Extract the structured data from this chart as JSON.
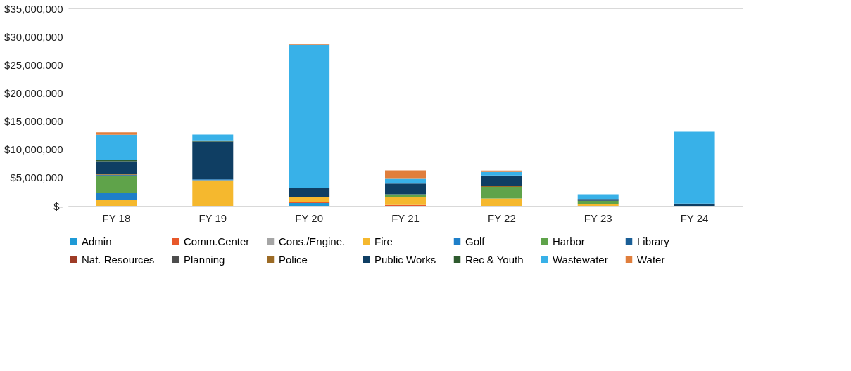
{
  "chart_data": {
    "type": "bar",
    "stacked": true,
    "categories": [
      "FY 18",
      "FY 19",
      "FY 20",
      "FY 21",
      "FY 22",
      "FY 23",
      "FY 24"
    ],
    "series": [
      {
        "name": "Admin",
        "color": "#1f9ad6",
        "values": [
          0,
          0,
          500000.0,
          0,
          0,
          0,
          0
        ]
      },
      {
        "name": "Comm.Center",
        "color": "#e8582a",
        "values": [
          0,
          0,
          250000.0,
          150000.0,
          0,
          0,
          0
        ]
      },
      {
        "name": "Cons./Engine.",
        "color": "#a5a5a5",
        "values": [
          0,
          0,
          0,
          0,
          0,
          0,
          0
        ]
      },
      {
        "name": "Fire",
        "color": "#f5b82e",
        "values": [
          1100000.0,
          4550000.0,
          750000.0,
          1400000.0,
          1300000.0,
          300000.0,
          0
        ]
      },
      {
        "name": "Golf",
        "color": "#1e7fc9",
        "values": [
          1250000.0,
          150000.0,
          0,
          0,
          0,
          0,
          0
        ]
      },
      {
        "name": "Harbor",
        "color": "#5fa34a",
        "values": [
          3050000.0,
          0,
          0,
          500000.0,
          2050000.0,
          600000.0,
          0
        ]
      },
      {
        "name": "Library",
        "color": "#1a5e96",
        "values": [
          100000.0,
          0,
          0,
          0,
          0,
          0,
          0
        ]
      },
      {
        "name": "Nat. Resources",
        "color": "#9e3b26",
        "values": [
          0,
          0,
          0,
          0,
          0,
          0,
          0
        ]
      },
      {
        "name": "Planning",
        "color": "#4d4d4d",
        "values": [
          0,
          0,
          0,
          0,
          0,
          0,
          0
        ]
      },
      {
        "name": "Police",
        "color": "#9c6b25",
        "values": [
          200000.0,
          0,
          0,
          0,
          150000.0,
          0,
          0
        ]
      },
      {
        "name": "Public Works",
        "color": "#0f3e63",
        "values": [
          2200000.0,
          6700000.0,
          1750000.0,
          1900000.0,
          1900000.0,
          300000.0,
          400000.0
        ]
      },
      {
        "name": "Rec & Youth",
        "color": "#2e5a2e",
        "values": [
          300000.0,
          200000.0,
          0,
          0,
          0,
          0,
          0
        ]
      },
      {
        "name": "Wastewater",
        "color": "#38b1e8",
        "values": [
          4400000.0,
          1050000.0,
          25300000.0,
          850000.0,
          600000.0,
          850000.0,
          12750000.0
        ]
      },
      {
        "name": "Water",
        "color": "#e07e3c",
        "values": [
          450000.0,
          0,
          150000.0,
          1500000.0,
          250000.0,
          0,
          0
        ]
      }
    ],
    "ylim": [
      0,
      35000000
    ],
    "yticks": [
      {
        "value": 0,
        "label": "$-"
      },
      {
        "value": 5000000,
        "label": "$5,000,000"
      },
      {
        "value": 10000000,
        "label": "$10,000,000"
      },
      {
        "value": 15000000,
        "label": "$15,000,000"
      },
      {
        "value": 20000000,
        "label": "$20,000,000"
      },
      {
        "value": 25000000,
        "label": "$25,000,000"
      },
      {
        "value": 30000000,
        "label": "$30,000,000"
      },
      {
        "value": 35000000,
        "label": "$35,000,000"
      }
    ],
    "grid": "y",
    "legend": "bottom"
  }
}
